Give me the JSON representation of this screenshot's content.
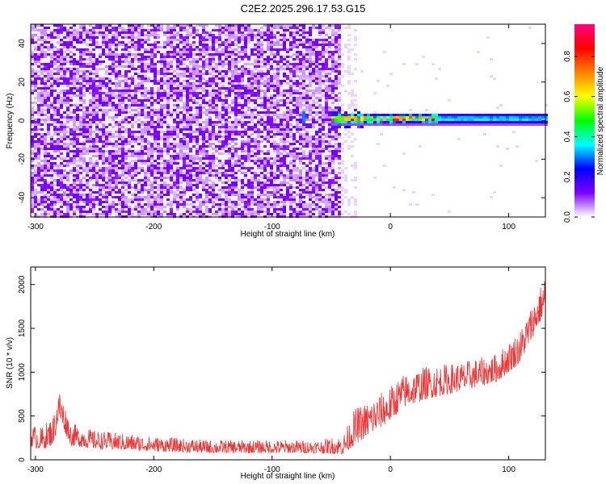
{
  "title": "C2E2.2025.296.17.53.G15",
  "chart_data": [
    {
      "type": "heatmap",
      "xlabel": "Height of straight line (km)",
      "ylabel": "Frequency (Hz)",
      "xlim": [
        -304,
        131
      ],
      "ylim": [
        -50,
        50
      ],
      "xticks": [
        -300,
        -200,
        -100,
        0,
        100
      ],
      "yticks": [
        -40,
        -20,
        0,
        20,
        40
      ],
      "xtick_labels": [
        "-300",
        "-200",
        "-100",
        "0",
        "100"
      ],
      "ytick_labels": [
        "-40",
        "-20",
        "0",
        "20",
        "40"
      ],
      "colorbar": {
        "label": "Normalized spectral amplitude",
        "range": [
          0,
          0.96
        ],
        "ticks": [
          0,
          0.2,
          0.4,
          0.6,
          0.8
        ],
        "tick_labels": [
          "0.0",
          "0.2",
          "0.4",
          "0.6",
          "0.8"
        ],
        "colormap": [
          "#ffffff",
          "#8000ff",
          "#0000ff",
          "#00ffff",
          "#00ff00",
          "#ffff00",
          "#ff8000",
          "#ff0000",
          "#ff0080"
        ]
      },
      "regions": [
        {
          "name": "noise",
          "x_range": [
            -304,
            -42
          ],
          "freq_range": [
            -50,
            50
          ],
          "amplitude": 0.1
        },
        {
          "name": "isolated-feature",
          "x": -75,
          "freq": 2,
          "amplitude": 0.3
        },
        {
          "name": "signal-band",
          "x_range": [
            -50,
            131
          ],
          "freq_center": 1.5,
          "freq_halfwidth": 3,
          "amplitude_peak": 0.9
        }
      ]
    },
    {
      "type": "line",
      "series": [
        {
          "name": "SNR",
          "color": "#ee3333"
        }
      ],
      "xlabel": "Height of straight line (km)",
      "ylabel": "SNR (10 * v/v)",
      "xlim": [
        -304,
        131
      ],
      "ylim": [
        0,
        2200
      ],
      "xticks": [
        -300,
        -200,
        -100,
        0,
        100
      ],
      "yticks": [
        0,
        500,
        1000,
        1500,
        2000
      ],
      "xtick_labels": [
        "-300",
        "-200",
        "-100",
        "0",
        "100"
      ],
      "ytick_labels": [
        "0",
        "500",
        "1000",
        "1500",
        "2000"
      ],
      "trend": {
        "x": [
          -304,
          -295,
          -285,
          -280,
          -270,
          -250,
          -200,
          -150,
          -100,
          -60,
          -40,
          -30,
          -20,
          0,
          10,
          30,
          60,
          90,
          110,
          131
        ],
        "y": [
          280,
          240,
          340,
          640,
          290,
          230,
          180,
          150,
          150,
          150,
          170,
          380,
          460,
          640,
          780,
          880,
          950,
          1050,
          1300,
          1900
        ],
        "noise": [
          250,
          260,
          340,
          360,
          260,
          210,
          170,
          150,
          150,
          150,
          220,
          420,
          400,
          400,
          380,
          380,
          330,
          330,
          380,
          420
        ]
      }
    }
  ]
}
